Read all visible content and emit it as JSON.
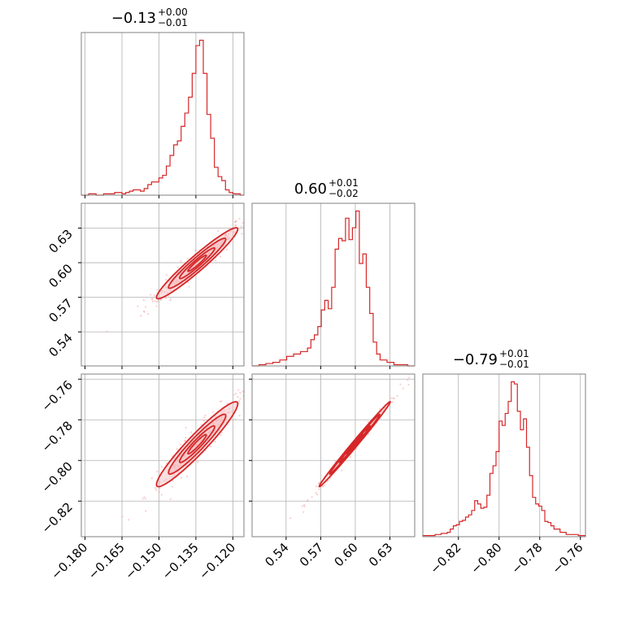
{
  "colors": {
    "line": "#d62728",
    "fill": "#f4b8ba",
    "grid": "#b0b0b0",
    "frame": "#808080",
    "scatter": "#f4a6a8"
  },
  "chart_data": {
    "type": "corner",
    "parameters": [
      {
        "title": {
          "value": "−0.13",
          "sup": "+0.00",
          "sub": "−0.01"
        },
        "range": [
          -0.1815,
          -0.1155
        ],
        "ticks": [
          -0.18,
          -0.165,
          -0.15,
          -0.135,
          -0.12
        ],
        "tick_labels": [
          "−0.180",
          "−0.165",
          "−0.150",
          "−0.135",
          "−0.120"
        ],
        "hist": {
          "edges": [
            -0.1815,
            -0.1785,
            -0.1755,
            -0.1725,
            -0.1695,
            -0.168,
            -0.1665,
            -0.165,
            -0.1635,
            -0.162,
            -0.1605,
            -0.159,
            -0.1575,
            -0.156,
            -0.1545,
            -0.153,
            -0.1515,
            -0.15,
            -0.1485,
            -0.147,
            -0.1455,
            -0.144,
            -0.1425,
            -0.141,
            -0.1395,
            -0.138,
            -0.1365,
            -0.135,
            -0.1335,
            -0.132,
            -0.1305,
            -0.129,
            -0.1275,
            -0.126,
            -0.1245,
            -0.123,
            -0.1215,
            -0.12,
            -0.1185,
            -0.117,
            -0.1155
          ],
          "values": [
            0,
            1,
            0,
            1,
            1,
            2,
            2,
            1,
            2,
            3,
            4,
            4,
            3,
            5,
            8,
            10,
            10,
            13,
            15,
            22,
            30,
            38,
            41,
            52,
            62,
            74,
            92,
            113,
            117,
            92,
            61,
            43,
            21,
            14,
            11,
            4,
            2,
            1,
            1,
            0
          ]
        }
      },
      {
        "title": {
          "value": "0.60",
          "sup": "+0.01",
          "sub": "−0.02"
        },
        "range": [
          0.5105,
          0.6515
        ],
        "ticks": [
          0.54,
          0.57,
          0.6,
          0.63
        ],
        "tick_labels": [
          "0.54",
          "0.57",
          "0.60",
          "0.63"
        ],
        "hist": {
          "edges": [
            0.5105,
            0.5165,
            0.5225,
            0.5285,
            0.5345,
            0.5405,
            0.5465,
            0.5525,
            0.5585,
            0.5615,
            0.5645,
            0.5675,
            0.5705,
            0.5735,
            0.5765,
            0.5795,
            0.5825,
            0.5855,
            0.5885,
            0.5915,
            0.5945,
            0.5975,
            0.6005,
            0.6035,
            0.6065,
            0.6095,
            0.6125,
            0.6155,
            0.6185,
            0.6215,
            0.6275,
            0.6335,
            0.6395,
            0.6455,
            0.6515
          ],
          "values": [
            0,
            1,
            2,
            3,
            5,
            8,
            10,
            12,
            15,
            22,
            26,
            33,
            47,
            55,
            48,
            66,
            98,
            107,
            105,
            124,
            106,
            116,
            130,
            86,
            94,
            66,
            44,
            20,
            10,
            5,
            3,
            1,
            1,
            0
          ]
        }
      },
      {
        "title": {
          "value": "−0.79",
          "sup": "+0.01",
          "sub": "−0.01"
        },
        "range": [
          -0.8375,
          -0.7575
        ],
        "ticks": [
          -0.82,
          -0.8,
          -0.78,
          -0.76
        ],
        "tick_labels": [
          "−0.82",
          "−0.80",
          "−0.78",
          "−0.76"
        ],
        "hist": {
          "edges": [
            -0.8375,
            -0.8345,
            -0.8315,
            -0.8285,
            -0.8255,
            -0.824,
            -0.8225,
            -0.821,
            -0.8195,
            -0.818,
            -0.8165,
            -0.815,
            -0.8135,
            -0.812,
            -0.8105,
            -0.809,
            -0.8075,
            -0.806,
            -0.8045,
            -0.803,
            -0.8015,
            -0.8,
            -0.7985,
            -0.797,
            -0.7955,
            -0.794,
            -0.7925,
            -0.791,
            -0.7895,
            -0.788,
            -0.7865,
            -0.785,
            -0.7835,
            -0.782,
            -0.7805,
            -0.779,
            -0.7775,
            -0.776,
            -0.7745,
            -0.773,
            -0.77,
            -0.767,
            -0.764,
            -0.761,
            -0.7575
          ],
          "values": [
            1,
            1,
            2,
            3,
            4,
            7,
            10,
            11,
            14,
            15,
            18,
            20,
            24,
            33,
            30,
            26,
            27,
            38,
            58,
            65,
            78,
            106,
            102,
            113,
            124,
            142,
            140,
            115,
            98,
            108,
            82,
            56,
            36,
            30,
            28,
            24,
            14,
            13,
            10,
            7,
            4,
            2,
            2,
            1
          ]
        }
      }
    ],
    "pairs": [
      {
        "x_param": 0,
        "y_param": 1,
        "mean": [
          -0.1345,
          0.5995
        ],
        "sd": [
          0.0075,
          0.014
        ],
        "rho": 0.96,
        "levels": [
          2.2,
          1.55,
          0.95,
          0.5
        ],
        "nscatter": 220
      },
      {
        "x_param": 0,
        "y_param": 2,
        "mean": [
          -0.1345,
          -0.792
        ],
        "sd": [
          0.0075,
          0.0095
        ],
        "rho": 0.95,
        "levels": [
          2.2,
          1.55,
          0.95,
          0.5
        ],
        "nscatter": 220
      },
      {
        "x_param": 1,
        "y_param": 2,
        "mean": [
          0.5995,
          -0.792
        ],
        "sd": [
          0.014,
          0.0095
        ],
        "rho": 0.995,
        "levels": [
          2.2,
          1.55,
          0.95,
          0.5
        ],
        "nscatter": 220
      }
    ]
  }
}
